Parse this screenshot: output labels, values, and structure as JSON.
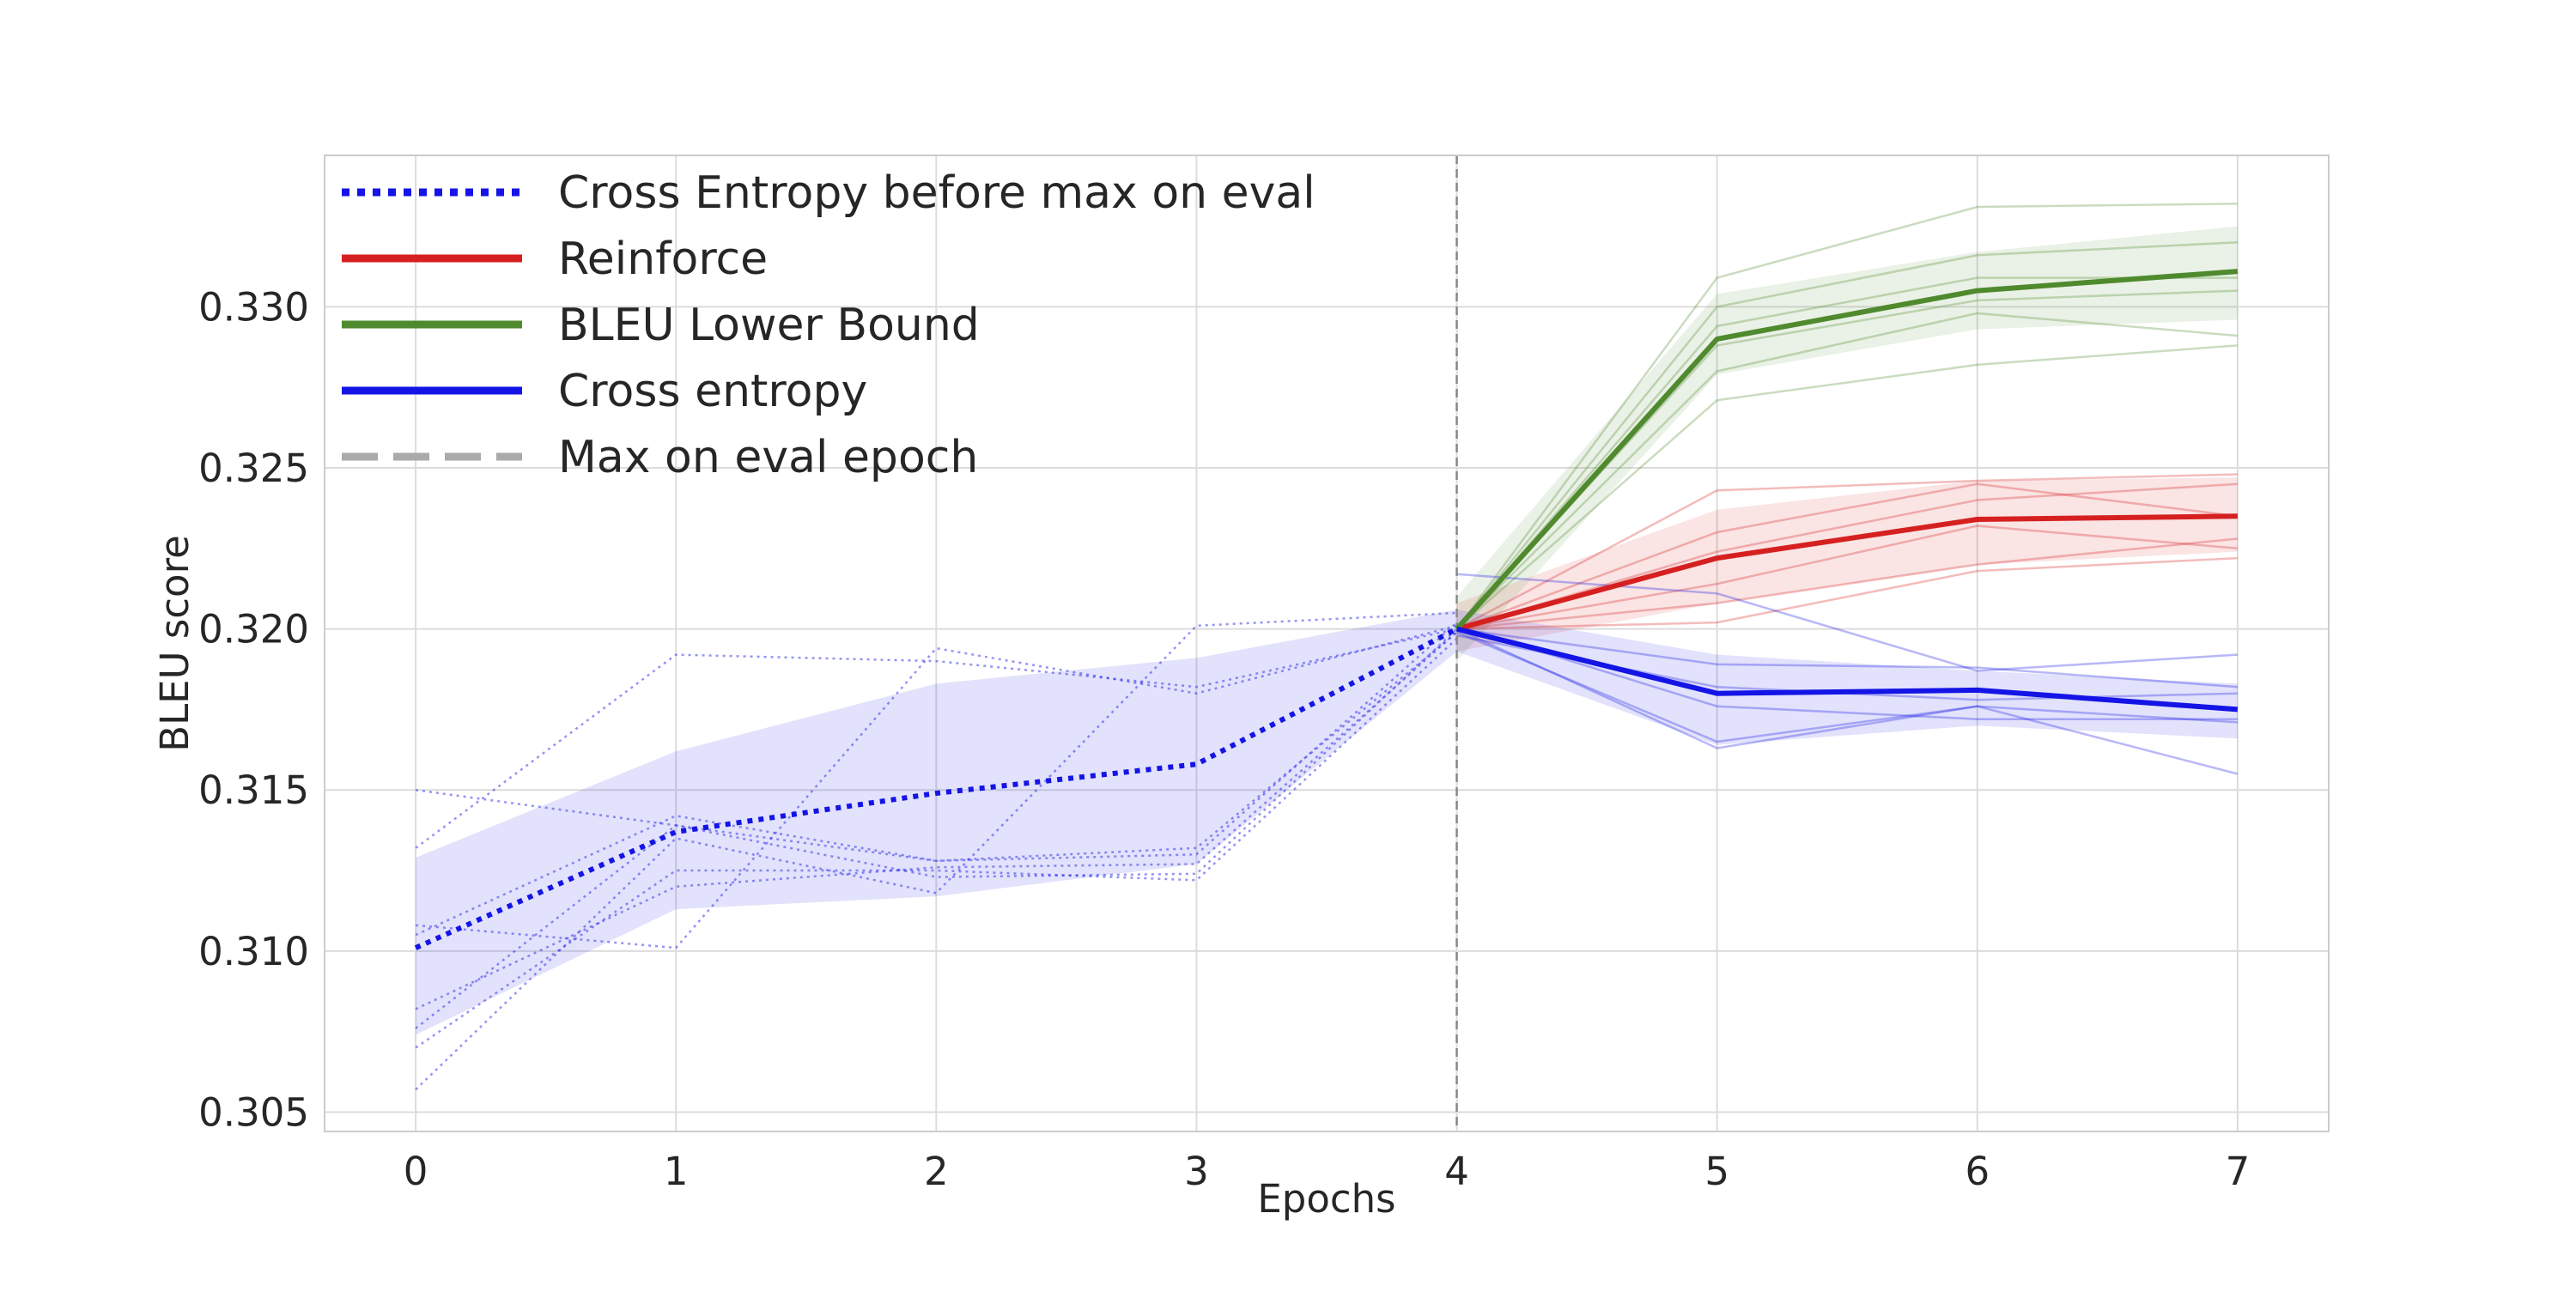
{
  "chart_data": {
    "type": "line",
    "title": "",
    "xlabel": "Epochs",
    "ylabel": "BLEU score",
    "xlim": [
      -0.35,
      7.35
    ],
    "ylim": [
      0.3044,
      0.3347
    ],
    "x_ticks": [
      0,
      1,
      2,
      3,
      4,
      5,
      6,
      7
    ],
    "y_ticks": [
      0.305,
      0.31,
      0.315,
      0.32,
      0.325,
      0.33
    ],
    "y_tick_labels": [
      "0.305",
      "0.310",
      "0.315",
      "0.320",
      "0.325",
      "0.330"
    ],
    "grid": true,
    "legend_position": "top-left",
    "max_eval_epoch": 4,
    "series": [
      {
        "name": "Cross Entropy before max on eval",
        "style": "dotted",
        "color": "#1414e6",
        "x": [
          0,
          1,
          2,
          3,
          4
        ],
        "y": [
          0.3101,
          0.3137,
          0.3149,
          0.3158,
          0.32
        ],
        "band_upper": [
          0.3129,
          0.3162,
          0.3183,
          0.3191,
          0.3206
        ],
        "band_lower": [
          0.3074,
          0.3113,
          0.3117,
          0.3127,
          0.3193
        ],
        "runs": [
          [
            0.315,
            0.3139,
            0.3128,
            0.3132,
            0.3199
          ],
          [
            0.3132,
            0.3192,
            0.319,
            0.3182,
            0.32
          ],
          [
            0.3108,
            0.3101,
            0.3194,
            0.318,
            0.3201
          ],
          [
            0.3082,
            0.312,
            0.3126,
            0.3127,
            0.3199
          ],
          [
            0.3076,
            0.3139,
            0.3123,
            0.3124,
            0.32
          ],
          [
            0.3057,
            0.3135,
            0.3118,
            0.3201,
            0.3205
          ],
          [
            0.307,
            0.3125,
            0.3125,
            0.3122,
            0.3197
          ],
          [
            0.3105,
            0.3142,
            0.3128,
            0.313,
            0.3202
          ]
        ]
      },
      {
        "name": "Reinforce",
        "style": "solid",
        "color": "#d62020",
        "x": [
          4,
          5,
          6,
          7
        ],
        "y": [
          0.32,
          0.3222,
          0.3234,
          0.3235
        ],
        "band_upper": [
          0.3208,
          0.3237,
          0.3246,
          0.3247
        ],
        "band_lower": [
          0.3193,
          0.3208,
          0.322,
          0.3224
        ],
        "runs": [
          [
            0.32,
            0.3243,
            0.3246,
            0.3248
          ],
          [
            0.32,
            0.323,
            0.3245,
            0.3235
          ],
          [
            0.32,
            0.3224,
            0.324,
            0.3245
          ],
          [
            0.32,
            0.3214,
            0.3232,
            0.3225
          ],
          [
            0.32,
            0.3208,
            0.322,
            0.3228
          ],
          [
            0.32,
            0.3202,
            0.3218,
            0.3222
          ]
        ]
      },
      {
        "name": "BLEU Lower Bound",
        "style": "solid",
        "color": "#4f8a2e",
        "x": [
          4,
          5,
          6,
          7
        ],
        "y": [
          0.32,
          0.329,
          0.3305,
          0.3311
        ],
        "band_upper": [
          0.321,
          0.3304,
          0.3317,
          0.3325
        ],
        "band_lower": [
          0.319,
          0.3279,
          0.3293,
          0.3296
        ],
        "runs": [
          [
            0.32,
            0.3309,
            0.3331,
            0.3332
          ],
          [
            0.32,
            0.33,
            0.3316,
            0.332
          ],
          [
            0.32,
            0.3294,
            0.3309,
            0.3309
          ],
          [
            0.32,
            0.3288,
            0.3302,
            0.3305
          ],
          [
            0.32,
            0.328,
            0.3298,
            0.3291
          ],
          [
            0.32,
            0.3271,
            0.3282,
            0.3288
          ]
        ]
      },
      {
        "name": "Cross entropy",
        "style": "solid",
        "color": "#1414e6",
        "x": [
          4,
          5,
          6,
          7
        ],
        "y": [
          0.32,
          0.318,
          0.3181,
          0.3175
        ],
        "band_upper": [
          0.3206,
          0.3192,
          0.3187,
          0.3183
        ],
        "band_lower": [
          0.3193,
          0.3164,
          0.317,
          0.3166
        ],
        "runs": [
          [
            0.3217,
            0.3211,
            0.3187,
            0.3192
          ],
          [
            0.32,
            0.3189,
            0.3188,
            0.3182
          ],
          [
            0.3198,
            0.3182,
            0.3178,
            0.318
          ],
          [
            0.3201,
            0.3176,
            0.3172,
            0.3172
          ],
          [
            0.3199,
            0.3165,
            0.3176,
            0.3171
          ],
          [
            0.32,
            0.3163,
            0.3176,
            0.3155
          ]
        ]
      },
      {
        "name": "Max on eval epoch",
        "style": "dashed",
        "color": "#aaaaaa"
      }
    ]
  }
}
